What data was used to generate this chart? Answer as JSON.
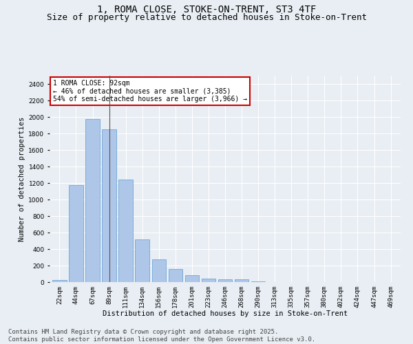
{
  "title1": "1, ROMA CLOSE, STOKE-ON-TRENT, ST3 4TF",
  "title2": "Size of property relative to detached houses in Stoke-on-Trent",
  "xlabel": "Distribution of detached houses by size in Stoke-on-Trent",
  "ylabel": "Number of detached properties",
  "categories": [
    "22sqm",
    "44sqm",
    "67sqm",
    "89sqm",
    "111sqm",
    "134sqm",
    "156sqm",
    "178sqm",
    "201sqm",
    "223sqm",
    "246sqm",
    "268sqm",
    "290sqm",
    "313sqm",
    "335sqm",
    "357sqm",
    "380sqm",
    "402sqm",
    "424sqm",
    "447sqm",
    "469sqm"
  ],
  "values": [
    25,
    1175,
    1975,
    1850,
    1245,
    520,
    275,
    155,
    85,
    45,
    35,
    30,
    8,
    2,
    1,
    0,
    0,
    0,
    0,
    0,
    0
  ],
  "bar_color": "#aec6e8",
  "bar_edge_color": "#5b9bd5",
  "bg_color": "#e8eef4",
  "annotation_text": "1 ROMA CLOSE: 92sqm\n← 46% of detached houses are smaller (3,385)\n54% of semi-detached houses are larger (3,966) →",
  "annotation_box_color": "#ffffff",
  "annotation_box_edge": "#cc0000",
  "property_bar_index": 3,
  "ylim": [
    0,
    2500
  ],
  "yticks": [
    0,
    200,
    400,
    600,
    800,
    1000,
    1200,
    1400,
    1600,
    1800,
    2000,
    2200,
    2400
  ],
  "footer1": "Contains HM Land Registry data © Crown copyright and database right 2025.",
  "footer2": "Contains public sector information licensed under the Open Government Licence v3.0.",
  "title_fontsize": 10,
  "subtitle_fontsize": 9,
  "axis_fontsize": 7.5,
  "tick_fontsize": 6.5,
  "annotation_fontsize": 7,
  "footer_fontsize": 6.5
}
